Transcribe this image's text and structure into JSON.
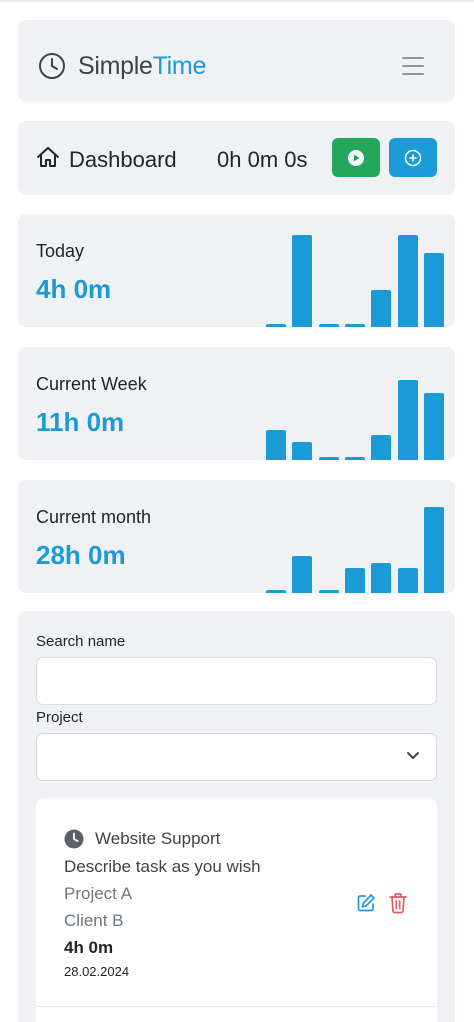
{
  "app": {
    "brand_simple": "Simple",
    "brand_time": "Time",
    "accent_color": "#1a9ad6",
    "play_color": "#22a75c"
  },
  "header": {
    "logo_icon": "clock-icon",
    "menu_icon": "hamburger-menu-icon"
  },
  "dashboard": {
    "title": "Dashboard",
    "home_icon": "home-icon",
    "timer": "0h 0m 0s",
    "play_icon": "play-icon",
    "add_icon": "plus-circle-icon"
  },
  "stats": [
    {
      "label": "Today",
      "value": "4h 0m",
      "bars": [
        0.03,
        1.0,
        0.03,
        0.03,
        0.4,
        1.0,
        0.8
      ]
    },
    {
      "label": "Current Week",
      "value": "11h 0m",
      "bars": [
        0.33,
        0.2,
        0.03,
        0.03,
        0.27,
        0.87,
        0.73
      ]
    },
    {
      "label": "Current month",
      "value": "28h 0m",
      "bars": [
        0.03,
        0.4,
        0.03,
        0.27,
        0.33,
        0.27,
        0.93
      ]
    }
  ],
  "filters": {
    "search_label": "Search name",
    "search_value": "",
    "project_label": "Project",
    "project_value": "",
    "chevron_icon": "chevron-down-icon"
  },
  "task": {
    "icon": "clock-icon",
    "name": "Website Support",
    "description": "Describe task as you wish",
    "project": "Project A",
    "client": "Client B",
    "duration": "4h 0m",
    "date": "28.02.2024",
    "edit_icon": "edit-icon",
    "delete_icon": "trash-icon"
  }
}
